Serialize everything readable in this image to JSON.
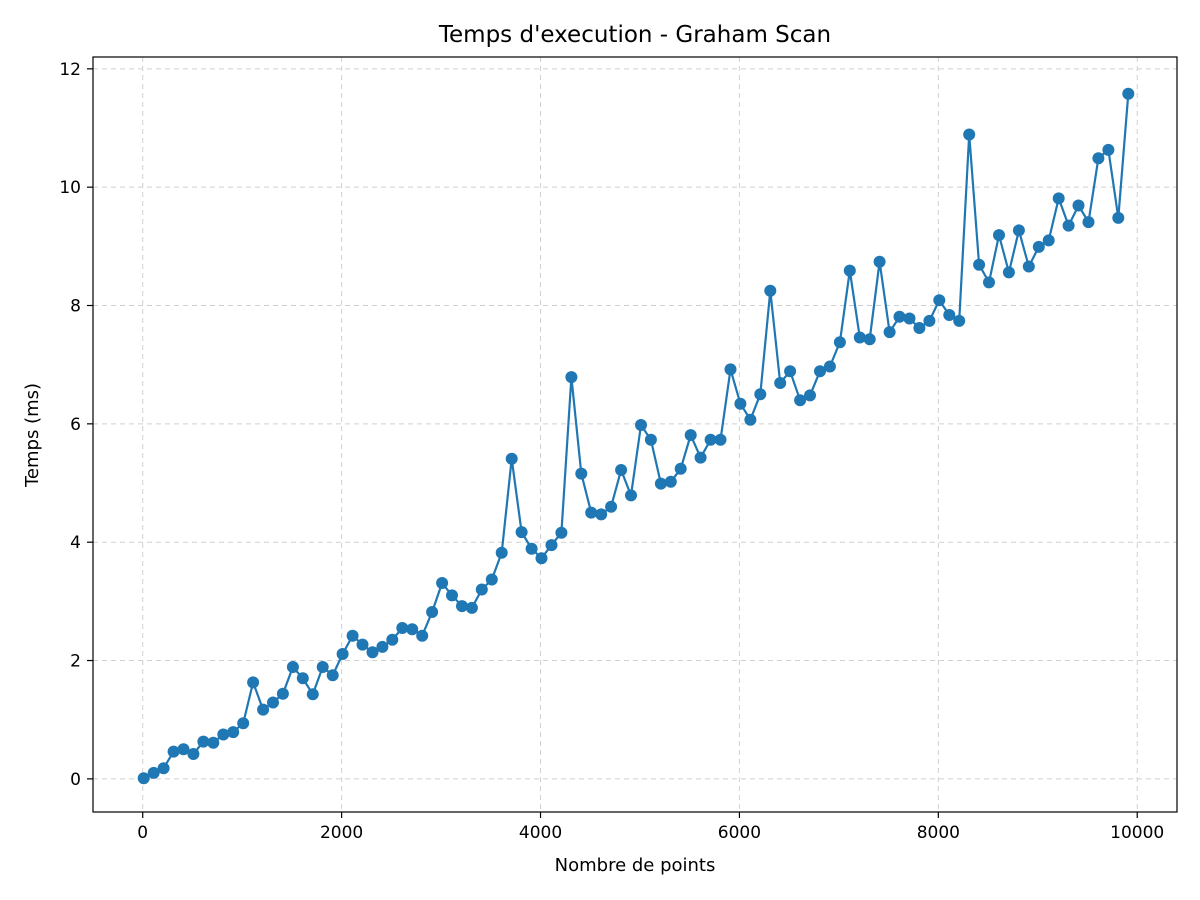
{
  "chart_data": {
    "type": "line",
    "title": "Temps d'execution - Graham Scan",
    "xlabel": "Nombre de points",
    "ylabel": "Temps (ms)",
    "xlim": [
      -500,
      10400
    ],
    "ylim": [
      -0.56,
      12.2
    ],
    "xticks": [
      0,
      2000,
      4000,
      6000,
      8000,
      10000
    ],
    "xtick_labels": [
      "0",
      "2000",
      "4000",
      "6000",
      "8000",
      "10000"
    ],
    "yticks": [
      0,
      2,
      4,
      6,
      8,
      10,
      12
    ],
    "ytick_labels": [
      "0",
      "2",
      "4",
      "6",
      "8",
      "10",
      "12"
    ],
    "grid": true,
    "color": "#1f77b4",
    "marker": "circle",
    "series": [
      {
        "x": [
          10,
          110,
          210,
          310,
          410,
          510,
          610,
          710,
          810,
          910,
          1010,
          1110,
          1210,
          1310,
          1410,
          1510,
          1610,
          1710,
          1810,
          1910,
          2010,
          2110,
          2210,
          2310,
          2410,
          2510,
          2610,
          2710,
          2810,
          2910,
          3010,
          3110,
          3210,
          3310,
          3410,
          3510,
          3610,
          3710,
          3810,
          3910,
          4010,
          4110,
          4210,
          4310,
          4410,
          4510,
          4610,
          4710,
          4810,
          4910,
          5010,
          5110,
          5210,
          5310,
          5410,
          5510,
          5610,
          5710,
          5810,
          5910,
          6010,
          6110,
          6210,
          6310,
          6410,
          6510,
          6610,
          6710,
          6810,
          6910,
          7010,
          7110,
          7210,
          7310,
          7410,
          7510,
          7610,
          7710,
          7810,
          7910,
          8010,
          8110,
          8210,
          8310,
          8410,
          8510,
          8610,
          8710,
          8810,
          8910,
          9010,
          9110,
          9210,
          9310,
          9410,
          9510,
          9610,
          9710,
          9810,
          9910
        ],
        "values": [
          0.01,
          0.1,
          0.18,
          0.46,
          0.5,
          0.42,
          0.63,
          0.61,
          0.75,
          0.79,
          0.94,
          1.63,
          1.17,
          1.29,
          1.44,
          1.89,
          1.7,
          1.43,
          1.89,
          1.75,
          2.11,
          2.42,
          2.27,
          2.14,
          2.23,
          2.35,
          2.55,
          2.53,
          2.42,
          2.82,
          3.31,
          3.1,
          2.92,
          2.89,
          3.2,
          3.37,
          3.82,
          5.41,
          4.17,
          3.89,
          3.73,
          3.95,
          4.16,
          6.79,
          5.16,
          4.5,
          4.47,
          4.6,
          5.22,
          4.79,
          5.98,
          5.73,
          4.99,
          5.02,
          5.24,
          5.81,
          5.43,
          5.73,
          5.73,
          6.92,
          6.34,
          6.07,
          6.5,
          8.25,
          6.69,
          6.89,
          6.4,
          6.48,
          6.89,
          6.97,
          7.38,
          8.59,
          7.46,
          7.43,
          8.74,
          7.55,
          7.81,
          7.78,
          7.62,
          7.74,
          8.09,
          7.84,
          7.74,
          10.89,
          8.69,
          8.39,
          9.19,
          8.56,
          9.27,
          8.66,
          8.99,
          9.1,
          9.81,
          9.35,
          9.69,
          9.41,
          10.49,
          10.63,
          9.48,
          11.58
        ]
      }
    ]
  }
}
